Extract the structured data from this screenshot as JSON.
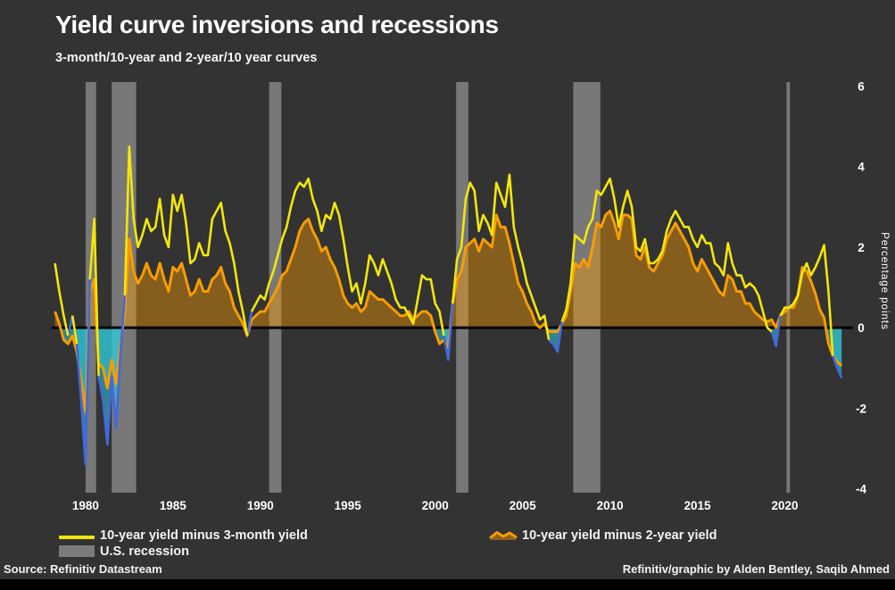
{
  "title": "Yield curve inversions and recessions",
  "subtitle": "3-month/10-year and 2-year/10 year curves",
  "legend": [
    {
      "label": "10-year yield minus 3-month yield",
      "swatch": "line",
      "color": "#f2e60c"
    },
    {
      "label": "10-year yield minus 2-year yield",
      "swatch": "wave",
      "color": "#f89c00"
    },
    {
      "label": "U.S. recession",
      "swatch": "rect",
      "color": "#7b7b7b"
    }
  ],
  "footer": {
    "source": "Source: Refinitiv Datastream",
    "credit": "Refinitiv/graphic by Alden Bentley, Saqib Ahmed"
  },
  "chart_data": {
    "type": "line",
    "title": "Yield curve inversions and recessions",
    "subtitle": "3-month/10-year and 2-year/10 year curves",
    "ylabel": "Percentage points",
    "grid": false,
    "legend_position": "bottom",
    "x_unit": "decimal_year",
    "x_start": 1978.25,
    "x_step": 0.25,
    "xlim": [
      1978.17,
      2023.6
    ],
    "ylim": [
      -4.1,
      6.1
    ],
    "y_ticks": [
      6,
      4,
      2,
      0,
      -2,
      -4
    ],
    "x_ticks": [
      1980,
      1985,
      1990,
      1995,
      2000,
      2005,
      2010,
      2015,
      2020
    ],
    "recessions": [
      [
        1980.0,
        1980.6
      ],
      [
        1981.5,
        1982.9
      ],
      [
        1990.5,
        1991.2
      ],
      [
        2001.2,
        2001.9
      ],
      [
        2007.9,
        2009.45
      ],
      [
        2020.1,
        2020.3
      ]
    ],
    "colors": {
      "background": "#333333",
      "recession_band": "#cdcdcd",
      "recession_band_opacity": 0.45,
      "zero_line": "#000000",
      "text": "#ffffff",
      "negative_fill": "#30c8d8",
      "negative_fill_opacity": 0.55,
      "positive_fill_opacity": 0.42,
      "inversion_line": "#4169e1"
    },
    "series": [
      {
        "name": "10-year yield minus 3-month yield",
        "color": "#f2e60c",
        "color_below_zero": "#4169e1",
        "fill_below_zero": "#30c8d8",
        "values": [
          1.6,
          0.9,
          0.3,
          -0.2,
          0.3,
          -0.4,
          -1.8,
          -3.4,
          1.2,
          2.7,
          -1.2,
          -1.8,
          -2.9,
          -1.2,
          -2.5,
          -0.6,
          0.8,
          4.5,
          2.7,
          2.0,
          2.3,
          2.7,
          2.4,
          2.5,
          3.2,
          2.3,
          2.0,
          3.3,
          2.9,
          3.3,
          2.6,
          1.6,
          1.7,
          2.1,
          1.8,
          1.8,
          2.7,
          2.9,
          3.1,
          2.4,
          2.1,
          1.6,
          0.9,
          0.4,
          -0.2,
          0.4,
          0.6,
          0.8,
          0.7,
          1.1,
          1.4,
          1.8,
          2.2,
          2.5,
          3.0,
          3.4,
          3.6,
          3.5,
          3.7,
          3.2,
          2.9,
          2.4,
          2.8,
          2.7,
          3.1,
          2.8,
          2.2,
          1.5,
          0.9,
          1.1,
          0.6,
          1.1,
          1.8,
          1.6,
          1.3,
          1.7,
          1.4,
          1.1,
          0.7,
          0.5,
          0.5,
          0.3,
          0.1,
          0.7,
          1.3,
          1.2,
          1.2,
          0.6,
          0.4,
          -0.2,
          -0.8,
          0.6,
          1.7,
          2.0,
          3.2,
          3.6,
          3.4,
          2.4,
          2.8,
          2.6,
          2.3,
          3.6,
          3.3,
          3.0,
          3.8,
          2.5,
          2.0,
          1.6,
          1.1,
          0.8,
          0.5,
          0.2,
          0.3,
          -0.3,
          -0.4,
          -0.6,
          0.15,
          0.45,
          1.1,
          2.3,
          2.2,
          2.1,
          2.5,
          2.7,
          3.4,
          3.3,
          3.5,
          3.7,
          3.2,
          2.5,
          3.0,
          3.4,
          3.0,
          2.0,
          1.9,
          2.2,
          1.6,
          1.6,
          1.7,
          1.9,
          2.4,
          2.7,
          2.9,
          2.7,
          2.5,
          2.5,
          2.2,
          2.0,
          2.3,
          2.1,
          2.1,
          1.6,
          1.5,
          1.3,
          2.1,
          1.6,
          1.3,
          1.3,
          1.0,
          1.1,
          1.0,
          0.8,
          0.4,
          0.0,
          -0.1,
          -0.45,
          0.3,
          0.5,
          0.5,
          0.6,
          0.8,
          1.35,
          1.6,
          1.3,
          1.5,
          1.75,
          2.05,
          0.9,
          -0.7,
          -1.0,
          -1.25
        ]
      },
      {
        "name": "10-year yield minus 2-year yield",
        "color": "#f89c00",
        "fill_above_zero": "#f89c00",
        "fill_below_zero": "#30c8d8",
        "values": [
          0.4,
          0.1,
          -0.3,
          -0.4,
          -0.2,
          -0.6,
          -1.3,
          -2.1,
          0.9,
          1.2,
          -0.9,
          -1.0,
          -1.5,
          -0.8,
          -1.4,
          -0.4,
          0.4,
          2.2,
          1.4,
          1.1,
          1.3,
          1.6,
          1.3,
          1.2,
          1.6,
          1.2,
          0.9,
          1.5,
          1.4,
          1.6,
          1.2,
          0.8,
          0.9,
          1.2,
          0.9,
          0.9,
          1.2,
          1.3,
          1.5,
          1.1,
          0.9,
          0.5,
          0.3,
          0.1,
          -0.2,
          0.2,
          0.3,
          0.4,
          0.4,
          0.6,
          0.8,
          1.0,
          1.3,
          1.4,
          1.7,
          2.0,
          2.4,
          2.6,
          2.7,
          2.4,
          2.2,
          1.9,
          2.0,
          1.7,
          1.5,
          1.2,
          0.8,
          0.6,
          0.5,
          0.6,
          0.4,
          0.5,
          0.9,
          0.8,
          0.7,
          0.7,
          0.6,
          0.5,
          0.4,
          0.3,
          0.3,
          0.4,
          0.2,
          0.3,
          0.4,
          0.4,
          0.3,
          -0.1,
          -0.4,
          -0.3,
          -0.5,
          0.6,
          1.2,
          1.4,
          2.0,
          2.1,
          2.2,
          1.9,
          2.2,
          2.1,
          2.0,
          2.8,
          2.5,
          2.5,
          2.1,
          1.6,
          1.1,
          0.9,
          0.6,
          0.4,
          0.1,
          0.0,
          0.1,
          -0.1,
          -0.1,
          -0.1,
          0.1,
          0.3,
          0.9,
          1.6,
          1.5,
          1.7,
          1.5,
          2.0,
          2.6,
          2.5,
          2.8,
          2.9,
          2.6,
          2.2,
          2.8,
          2.8,
          2.7,
          1.8,
          1.7,
          2.0,
          1.5,
          1.4,
          1.6,
          1.8,
          2.2,
          2.4,
          2.6,
          2.4,
          2.2,
          2.0,
          1.6,
          1.4,
          1.7,
          1.5,
          1.3,
          1.1,
          0.9,
          0.8,
          1.3,
          1.2,
          0.9,
          0.9,
          0.6,
          0.6,
          0.4,
          0.3,
          0.2,
          0.15,
          0.2,
          0.0,
          0.3,
          0.4,
          0.5,
          0.5,
          0.8,
          1.5,
          1.4,
          1.15,
          0.85,
          0.45,
          0.25,
          -0.4,
          -0.7,
          -0.85,
          -0.95
        ]
      }
    ]
  }
}
